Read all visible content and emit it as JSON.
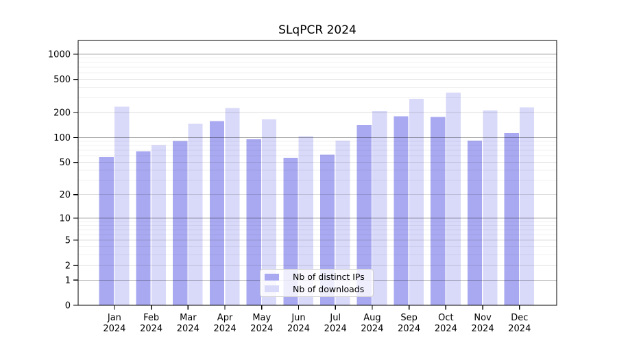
{
  "chart_data": {
    "type": "bar",
    "title": "SLqPCR 2024",
    "categories": [
      "Jan 2024",
      "Feb 2024",
      "Mar 2024",
      "Apr 2024",
      "May 2024",
      "Jun 2024",
      "Jul 2024",
      "Aug 2024",
      "Sep 2024",
      "Oct 2024",
      "Nov 2024",
      "Dec 2024"
    ],
    "series": [
      {
        "name": "Nb of distinct IPs",
        "color": "#a9a9f1",
        "values": [
          58,
          68,
          91,
          158,
          95,
          57,
          62,
          142,
          180,
          176,
          92,
          113
        ]
      },
      {
        "name": "Nb of downloads",
        "color": "#d9d9f9",
        "values": [
          235,
          81,
          146,
          226,
          165,
          104,
          92,
          208,
          291,
          347,
          212,
          230
        ]
      }
    ],
    "xlabel": "",
    "ylabel": "",
    "yscale": "log10(1+x)",
    "yticks": [
      0,
      1,
      2,
      5,
      10,
      20,
      50,
      100,
      200,
      500,
      1000
    ],
    "ylim": [
      0,
      1458
    ],
    "grid": true,
    "legend_position": "lower center"
  }
}
